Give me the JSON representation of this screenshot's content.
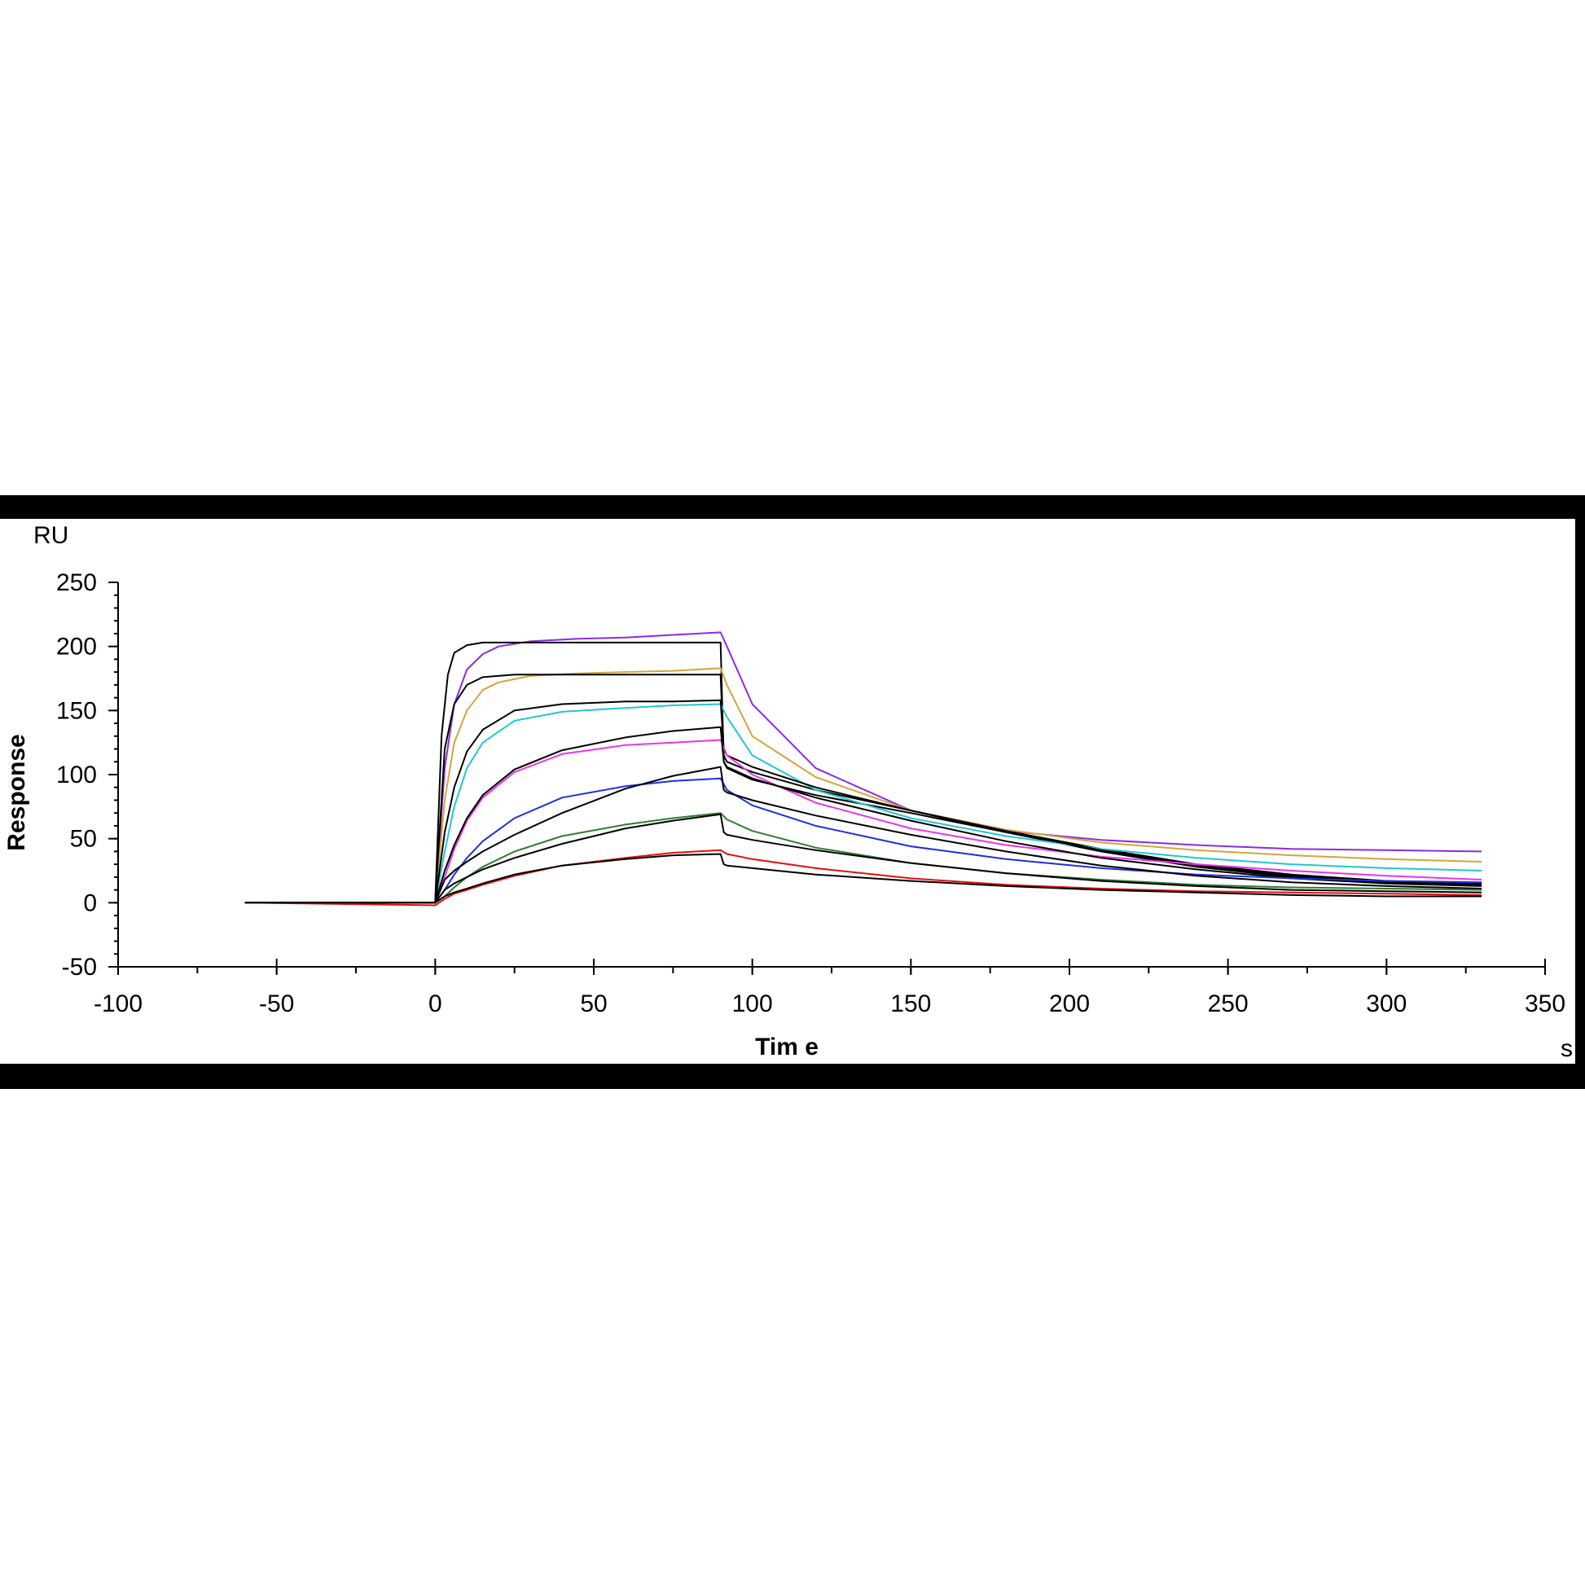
{
  "chart_data": {
    "type": "line",
    "title": "",
    "xlabel": "Tim e",
    "ylabel": "Response",
    "x_unit": "s",
    "y_unit": "RU",
    "xlim": [
      -100,
      350
    ],
    "ylim": [
      -50,
      250
    ],
    "x_ticks": [
      -100,
      -50,
      0,
      50,
      100,
      150,
      200,
      250,
      300,
      350
    ],
    "x_tick_labels": [
      "-100",
      "-50",
      "0",
      "50",
      "100",
      "150",
      "200",
      "250",
      "300",
      "350"
    ],
    "y_ticks": [
      -50,
      0,
      50,
      100,
      150,
      200,
      250
    ],
    "y_tick_labels": [
      "-50",
      "0",
      "50",
      "100",
      "150",
      "200",
      "250"
    ],
    "grid": false,
    "legend": "none",
    "series": [
      {
        "color": "#8B2BE2",
        "x": [
          -60,
          0,
          3,
          6,
          10,
          15,
          20,
          30,
          45,
          60,
          75,
          90,
          92,
          100,
          120,
          150,
          180,
          210,
          240,
          270,
          300,
          330
        ],
        "y": [
          0,
          0,
          105,
          155,
          182,
          194,
          200,
          204,
          206,
          207,
          209,
          211,
          200,
          155,
          105,
          72,
          56,
          49,
          45,
          42,
          41,
          40
        ]
      },
      {
        "color": "#000000",
        "x": [
          -60,
          0,
          2,
          4,
          6,
          10,
          15,
          25,
          45,
          60,
          75,
          90,
          91,
          92,
          100,
          120,
          150,
          180,
          210,
          240,
          270,
          300,
          330
        ],
        "y": [
          0,
          0,
          130,
          178,
          195,
          201,
          203,
          203,
          203,
          203,
          203,
          203,
          110,
          105,
          96,
          84,
          70,
          55,
          40,
          28,
          20,
          16,
          14
        ]
      },
      {
        "color": "#D4A53A",
        "x": [
          -60,
          0,
          3,
          6,
          10,
          15,
          20,
          30,
          45,
          60,
          75,
          90,
          92,
          100,
          120,
          150,
          180,
          210,
          240,
          270,
          300,
          330
        ],
        "y": [
          0,
          0,
          80,
          125,
          150,
          166,
          172,
          177,
          179,
          180,
          181,
          183,
          170,
          130,
          98,
          72,
          57,
          47,
          41,
          37,
          34,
          32
        ]
      },
      {
        "color": "#000000",
        "x": [
          -60,
          0,
          3,
          6,
          10,
          15,
          25,
          40,
          60,
          75,
          90,
          91,
          92,
          100,
          120,
          150,
          180,
          210,
          240,
          270,
          300,
          330
        ],
        "y": [
          0,
          0,
          120,
          155,
          170,
          176,
          178,
          178,
          178,
          178,
          178,
          115,
          110,
          102,
          88,
          72,
          56,
          42,
          30,
          22,
          17,
          15
        ]
      },
      {
        "color": "#20C8D0",
        "x": [
          -60,
          0,
          3,
          6,
          10,
          15,
          25,
          40,
          60,
          75,
          90,
          92,
          100,
          120,
          150,
          180,
          210,
          240,
          270,
          300,
          330
        ],
        "y": [
          0,
          0,
          40,
          75,
          105,
          125,
          142,
          149,
          152,
          154,
          155,
          145,
          115,
          88,
          66,
          52,
          42,
          35,
          30,
          27,
          25
        ]
      },
      {
        "color": "#000000",
        "x": [
          -60,
          0,
          3,
          6,
          10,
          15,
          25,
          40,
          60,
          75,
          90,
          91,
          92,
          100,
          120,
          150,
          180,
          210,
          240,
          270,
          300,
          330
        ],
        "y": [
          0,
          0,
          55,
          90,
          118,
          135,
          150,
          155,
          157,
          157,
          158,
          120,
          115,
          106,
          90,
          72,
          55,
          41,
          29,
          21,
          17,
          14
        ]
      },
      {
        "color": "#E835E8",
        "x": [
          -60,
          0,
          3,
          6,
          10,
          15,
          25,
          40,
          60,
          75,
          90,
          92,
          100,
          120,
          150,
          180,
          210,
          240,
          270,
          300,
          330
        ],
        "y": [
          0,
          0,
          20,
          42,
          64,
          82,
          102,
          116,
          123,
          125,
          127,
          115,
          100,
          78,
          58,
          45,
          36,
          30,
          25,
          21,
          18
        ]
      },
      {
        "color": "#000000",
        "x": [
          -60,
          0,
          3,
          6,
          10,
          15,
          25,
          40,
          60,
          75,
          90,
          91,
          92,
          100,
          120,
          150,
          180,
          210,
          240,
          270,
          300,
          330
        ],
        "y": [
          0,
          0,
          25,
          45,
          66,
          84,
          104,
          119,
          129,
          134,
          137,
          110,
          106,
          97,
          82,
          64,
          48,
          35,
          26,
          19,
          15,
          13
        ]
      },
      {
        "color": "#1C2FE0",
        "x": [
          -60,
          0,
          3,
          6,
          10,
          15,
          25,
          40,
          60,
          75,
          90,
          92,
          100,
          120,
          150,
          180,
          210,
          240,
          270,
          300,
          330
        ],
        "y": [
          0,
          0,
          10,
          22,
          35,
          48,
          66,
          82,
          91,
          95,
          97,
          88,
          76,
          60,
          44,
          34,
          27,
          22,
          19,
          17,
          16
        ]
      },
      {
        "color": "#000000",
        "x": [
          -60,
          0,
          3,
          6,
          10,
          15,
          25,
          40,
          60,
          75,
          90,
          91,
          92,
          100,
          120,
          150,
          180,
          210,
          240,
          270,
          300,
          330
        ],
        "y": [
          0,
          0,
          18,
          25,
          32,
          40,
          53,
          70,
          89,
          99,
          106,
          88,
          86,
          80,
          68,
          53,
          40,
          29,
          21,
          16,
          13,
          11
        ]
      },
      {
        "color": "#2E7D32",
        "x": [
          -60,
          0,
          3,
          6,
          10,
          15,
          25,
          40,
          60,
          75,
          90,
          92,
          100,
          120,
          150,
          180,
          210,
          240,
          270,
          300,
          330
        ],
        "y": [
          0,
          0,
          5,
          12,
          20,
          28,
          40,
          52,
          61,
          66,
          70,
          65,
          56,
          43,
          31,
          23,
          18,
          14,
          12,
          11,
          10
        ]
      },
      {
        "color": "#000000",
        "x": [
          -60,
          0,
          3,
          6,
          10,
          15,
          25,
          40,
          60,
          75,
          90,
          91,
          92,
          100,
          120,
          150,
          180,
          210,
          240,
          270,
          300,
          330
        ],
        "y": [
          0,
          0,
          10,
          15,
          20,
          26,
          35,
          46,
          58,
          64,
          69,
          55,
          53,
          49,
          41,
          31,
          23,
          17,
          13,
          10,
          9,
          8
        ]
      },
      {
        "color": "#E01010",
        "x": [
          -60,
          0,
          3,
          6,
          10,
          15,
          25,
          40,
          60,
          75,
          90,
          92,
          100,
          120,
          150,
          180,
          210,
          240,
          270,
          300,
          330
        ],
        "y": [
          0,
          -2,
          3,
          7,
          10,
          14,
          21,
          29,
          35,
          39,
          41,
          38,
          34,
          27,
          19,
          14,
          11,
          9,
          8,
          7,
          6
        ]
      },
      {
        "color": "#000000",
        "x": [
          -60,
          0,
          3,
          6,
          10,
          15,
          25,
          40,
          60,
          75,
          90,
          91,
          92,
          100,
          120,
          150,
          180,
          210,
          240,
          270,
          300,
          330
        ],
        "y": [
          0,
          0,
          5,
          8,
          11,
          15,
          22,
          29,
          34,
          37,
          38,
          30,
          29,
          27,
          22,
          17,
          13,
          10,
          8,
          6,
          5,
          5
        ]
      }
    ]
  }
}
